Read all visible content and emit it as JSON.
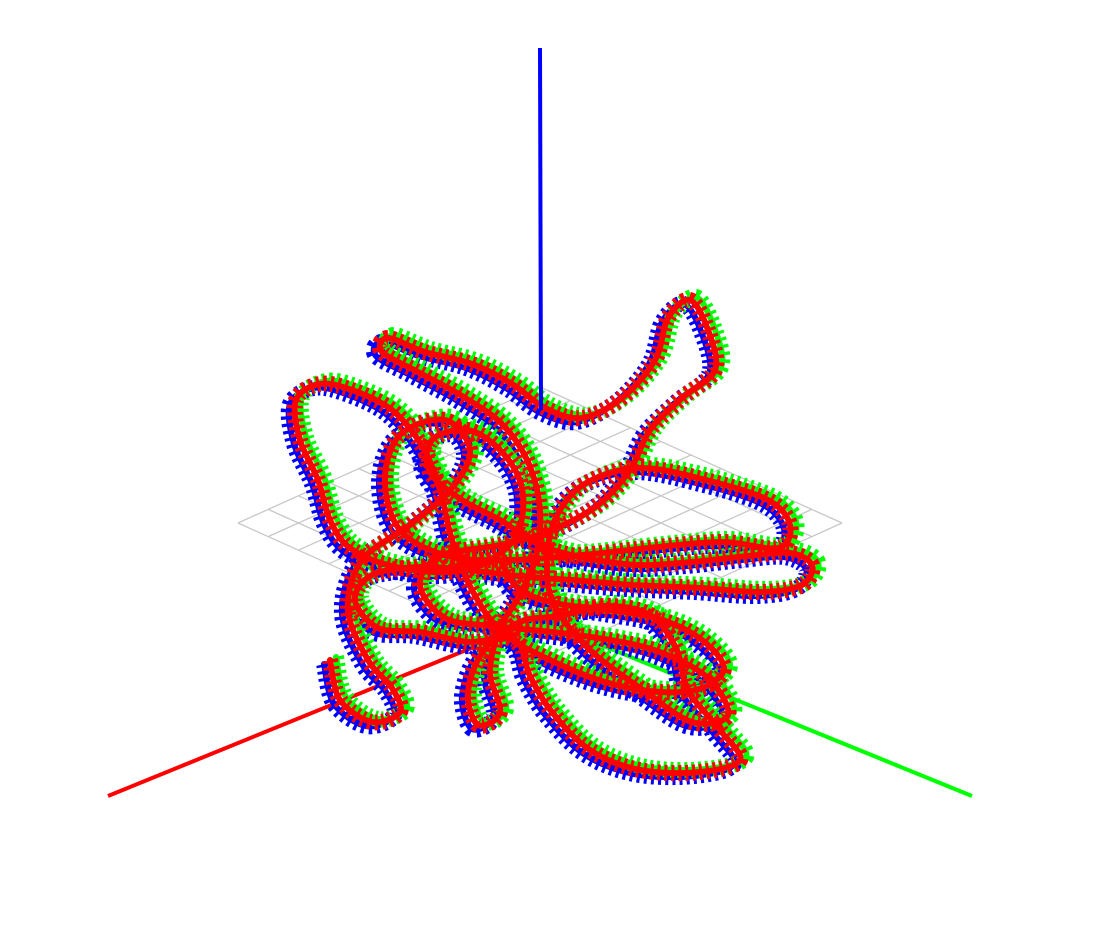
{
  "scene": {
    "background": "#ffffff",
    "grid_color": "#c8c8c8",
    "axis_colors": {
      "x": "#ff0000",
      "y": "#00ff00",
      "z": "#0000ff"
    },
    "trajectories": [
      {
        "color": "#0000ff",
        "icon": "ribbon-trajectory"
      },
      {
        "color": "#00ff00",
        "icon": "ribbon-trajectory"
      },
      {
        "color": "#ff0000",
        "icon": "ribbon-trajectory"
      }
    ]
  }
}
